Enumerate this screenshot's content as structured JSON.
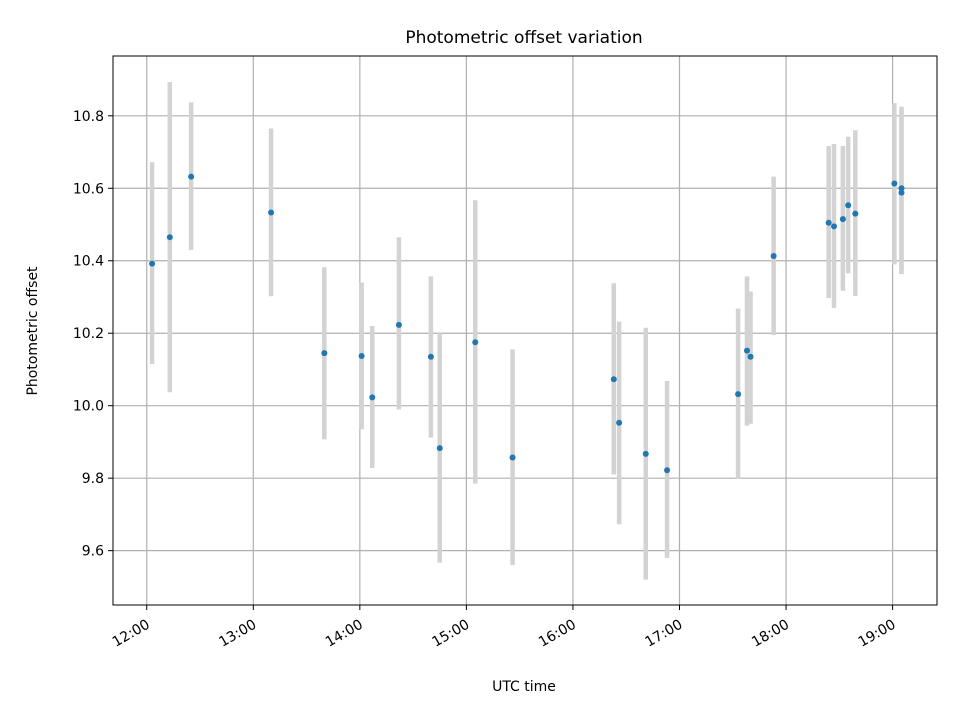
{
  "chart_data": {
    "type": "scatter",
    "title": "Photometric offset variation",
    "xlabel": "UTC time",
    "ylabel": "Photometric offset",
    "x_tick_labels": [
      "12:00",
      "13:00",
      "14:00",
      "15:00",
      "16:00",
      "17:00",
      "18:00",
      "19:00"
    ],
    "y_tick_labels": [
      "9.6",
      "9.8",
      "10.0",
      "10.2",
      "10.4",
      "10.6",
      "10.8"
    ],
    "xlim": [
      "11:41",
      "19:25"
    ],
    "ylim": [
      9.45,
      10.965
    ],
    "grid": true,
    "points": [
      {
        "time": "12:03",
        "y": 10.392,
        "err_low": 10.115,
        "err_high": 10.672
      },
      {
        "time": "12:13",
        "y": 10.465,
        "err_low": 10.037,
        "err_high": 10.893
      },
      {
        "time": "12:25",
        "y": 10.632,
        "err_low": 10.43,
        "err_high": 10.837
      },
      {
        "time": "13:10",
        "y": 10.533,
        "err_low": 10.302,
        "err_high": 10.765
      },
      {
        "time": "13:40",
        "y": 10.145,
        "err_low": 9.907,
        "err_high": 10.382
      },
      {
        "time": "14:01",
        "y": 10.137,
        "err_low": 9.935,
        "err_high": 10.34
      },
      {
        "time": "14:07",
        "y": 10.023,
        "err_low": 9.828,
        "err_high": 10.22
      },
      {
        "time": "14:22",
        "y": 10.223,
        "err_low": 9.99,
        "err_high": 10.465
      },
      {
        "time": "14:40",
        "y": 10.135,
        "err_low": 9.912,
        "err_high": 10.357
      },
      {
        "time": "14:45",
        "y": 9.883,
        "err_low": 9.567,
        "err_high": 10.2
      },
      {
        "time": "15:05",
        "y": 10.175,
        "err_low": 9.785,
        "err_high": 10.567
      },
      {
        "time": "15:26",
        "y": 9.857,
        "err_low": 9.56,
        "err_high": 10.155
      },
      {
        "time": "16:23",
        "y": 10.073,
        "err_low": 9.81,
        "err_high": 10.338
      },
      {
        "time": "16:26",
        "y": 9.953,
        "err_low": 9.673,
        "err_high": 10.232
      },
      {
        "time": "16:41",
        "y": 9.867,
        "err_low": 9.52,
        "err_high": 10.215
      },
      {
        "time": "16:53",
        "y": 9.822,
        "err_low": 9.58,
        "err_high": 10.068
      },
      {
        "time": "17:33",
        "y": 10.032,
        "err_low": 9.798,
        "err_high": 10.268
      },
      {
        "time": "17:38",
        "y": 10.152,
        "err_low": 9.945,
        "err_high": 10.357
      },
      {
        "time": "17:40",
        "y": 10.135,
        "err_low": 9.95,
        "err_high": 10.315
      },
      {
        "time": "17:53",
        "y": 10.413,
        "err_low": 10.195,
        "err_high": 10.632
      },
      {
        "time": "18:24",
        "y": 10.505,
        "err_low": 10.297,
        "err_high": 10.717
      },
      {
        "time": "18:27",
        "y": 10.495,
        "err_low": 10.27,
        "err_high": 10.722
      },
      {
        "time": "18:32",
        "y": 10.515,
        "err_low": 10.317,
        "err_high": 10.717
      },
      {
        "time": "18:35",
        "y": 10.553,
        "err_low": 10.365,
        "err_high": 10.742
      },
      {
        "time": "18:39",
        "y": 10.53,
        "err_low": 10.303,
        "err_high": 10.76
      },
      {
        "time": "19:01",
        "y": 10.613,
        "err_low": 10.39,
        "err_high": 10.835
      },
      {
        "time": "19:05",
        "y": 10.588,
        "err_low": 10.363,
        "err_high": 10.815
      },
      {
        "time": "19:05",
        "y": 10.6,
        "err_low": 10.375,
        "err_high": 10.825
      }
    ],
    "colors": {
      "marker": "#1f77b4",
      "errorbar": "#d3d3d3",
      "grid": "#b0b0b0",
      "axes": "#000000"
    }
  }
}
